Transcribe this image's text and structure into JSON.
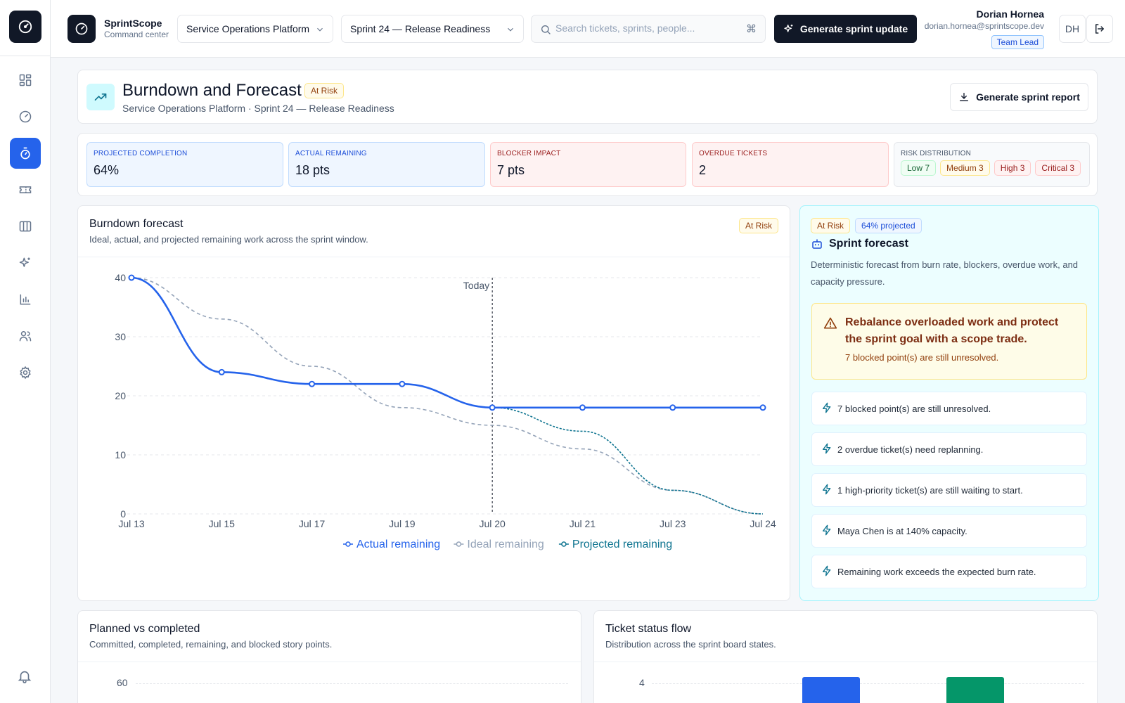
{
  "app": {
    "name": "SprintScope",
    "subtitle": "Command center"
  },
  "header": {
    "project_select": "Service Operations Platform",
    "sprint_select": "Sprint 24 — Release Readiness",
    "search_placeholder": "Search tickets, sprints, people...",
    "search_shortcut": "⌘",
    "generate_button": "Generate sprint update",
    "user": {
      "name": "Dorian Hornea",
      "email": "dorian.hornea@sprintscope.dev",
      "role": "Team Lead",
      "initials": "DH"
    }
  },
  "sidebar": {
    "items": [
      {
        "icon": "dashboard-icon",
        "active": false
      },
      {
        "icon": "gauge-icon",
        "active": false
      },
      {
        "icon": "stopwatch-icon",
        "active": true
      },
      {
        "icon": "ticket-icon",
        "active": false
      },
      {
        "icon": "board-columns-icon",
        "active": false
      },
      {
        "icon": "sparkles-icon",
        "active": false
      },
      {
        "icon": "bar-chart-icon",
        "active": false
      },
      {
        "icon": "users-icon",
        "active": false
      },
      {
        "icon": "gear-icon",
        "active": false
      }
    ],
    "footer_icon": "bell-icon"
  },
  "page": {
    "title": "Burndown and Forecast",
    "status": "At Risk",
    "subtitle": "Service Operations Platform · Sprint 24 — Release Readiness",
    "report_button": "Generate sprint report"
  },
  "metrics": {
    "projected": {
      "label": "Projected completion",
      "value": "64%"
    },
    "remaining": {
      "label": "Actual remaining",
      "value": "18 pts"
    },
    "blocker": {
      "label": "Blocker impact",
      "value": "7 pts"
    },
    "overdue": {
      "label": "Overdue tickets",
      "value": "2"
    },
    "risk": {
      "label": "Risk distribution",
      "low": "Low 7",
      "medium": "Medium 3",
      "high": "High 3",
      "critical": "Critical 3"
    }
  },
  "burndown": {
    "title": "Burndown forecast",
    "subtitle": "Ideal, actual, and projected remaining work across the sprint window.",
    "status": "At Risk",
    "today_label": "Today"
  },
  "chart_data": [
    {
      "type": "line",
      "categories": [
        "Jul 13",
        "Jul 15",
        "Jul 17",
        "Jul 19",
        "Jul 20",
        "Jul 21",
        "Jul 23",
        "Jul 24"
      ],
      "today_category": "Jul 20",
      "ylim": [
        0,
        40
      ],
      "yticks": [
        0,
        10,
        20,
        30,
        40
      ],
      "grid": true,
      "legend": "bottom",
      "series": [
        {
          "name": "Actual remaining",
          "color": "#2563eb",
          "style": "solid",
          "values": [
            40,
            24,
            22,
            22,
            18,
            18,
            18,
            18
          ]
        },
        {
          "name": "Ideal remaining",
          "color": "#94a3b8",
          "style": "dashed",
          "values": [
            40,
            33,
            25,
            18,
            15,
            11,
            4,
            0
          ]
        },
        {
          "name": "Projected remaining",
          "color": "#0e7490",
          "style": "dotted",
          "values": [
            null,
            null,
            null,
            22,
            18,
            14,
            4,
            0
          ]
        }
      ]
    },
    {
      "type": "bar",
      "title": "Planned vs completed",
      "subtitle": "Committed, completed, remaining, and blocked story points.",
      "yticks_visible": [
        60
      ]
    },
    {
      "type": "bar",
      "title": "Ticket status flow",
      "subtitle": "Distribution across the sprint board states.",
      "yticks_visible": [
        4
      ],
      "bar_colors": [
        "#2563eb",
        "#059669"
      ]
    }
  ],
  "forecast": {
    "status": "At Risk",
    "projected_badge": "64% projected",
    "title": "Sprint forecast",
    "description": "Deterministic forecast from burn rate, blockers, overdue work, and capacity pressure.",
    "alert_title": "Rebalance overloaded work and protect the sprint goal with a scope trade.",
    "alert_detail": "7 blocked point(s) are still unresolved.",
    "items": [
      "7 blocked point(s) are still unresolved.",
      "2 overdue ticket(s) need replanning.",
      "1 high-priority ticket(s) are still waiting to start.",
      "Maya Chen is at 140% capacity.",
      "Remaining work exceeds the expected burn rate."
    ]
  }
}
